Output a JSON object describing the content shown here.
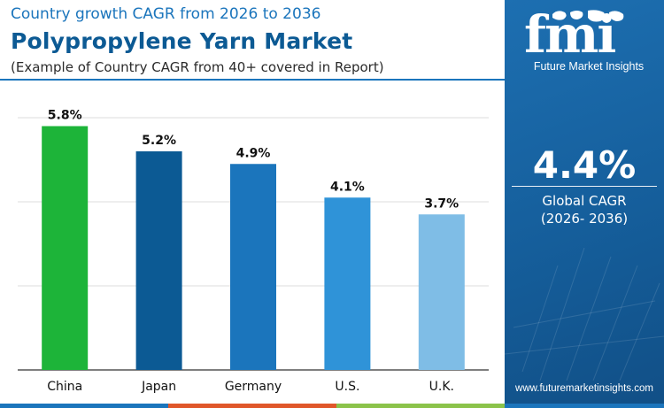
{
  "header": {
    "subtitle_top": "Country growth CAGR from 2026 to 2036",
    "title": "Polypropylene Yarn Market",
    "subtitle_note": "(Example of Country CAGR from 40+ covered in Report)"
  },
  "sidebar": {
    "logo_text": "fmi",
    "logo_caption": "Future Market Insights",
    "kpi_value": "4.4%",
    "kpi_label": "Global CAGR",
    "kpi_period": "(2026- 2036)",
    "url": "www.futuremarketinsights.com"
  },
  "colors": {
    "title_blue": "#0c5a94",
    "accent_blue": "#1b75bc",
    "panel_blue": "#155e9b",
    "grid": "#dcdcdc",
    "stripe": [
      "#1b75bc",
      "#e0572a",
      "#8bc34a",
      "#1b75bc"
    ]
  },
  "chart_data": {
    "type": "bar",
    "categories": [
      "China",
      "Japan",
      "Germany",
      "U.S.",
      "U.K."
    ],
    "values": [
      5.8,
      5.2,
      4.9,
      4.1,
      3.7
    ],
    "value_labels": [
      "5.8%",
      "5.2%",
      "4.9%",
      "4.1%",
      "3.7%"
    ],
    "bar_colors": [
      "#1db439",
      "#0c5a94",
      "#1b75bc",
      "#2f93d8",
      "#7fbde6"
    ],
    "ylim": [
      0,
      6
    ],
    "grid": true,
    "xlabel": "",
    "ylabel": ""
  }
}
